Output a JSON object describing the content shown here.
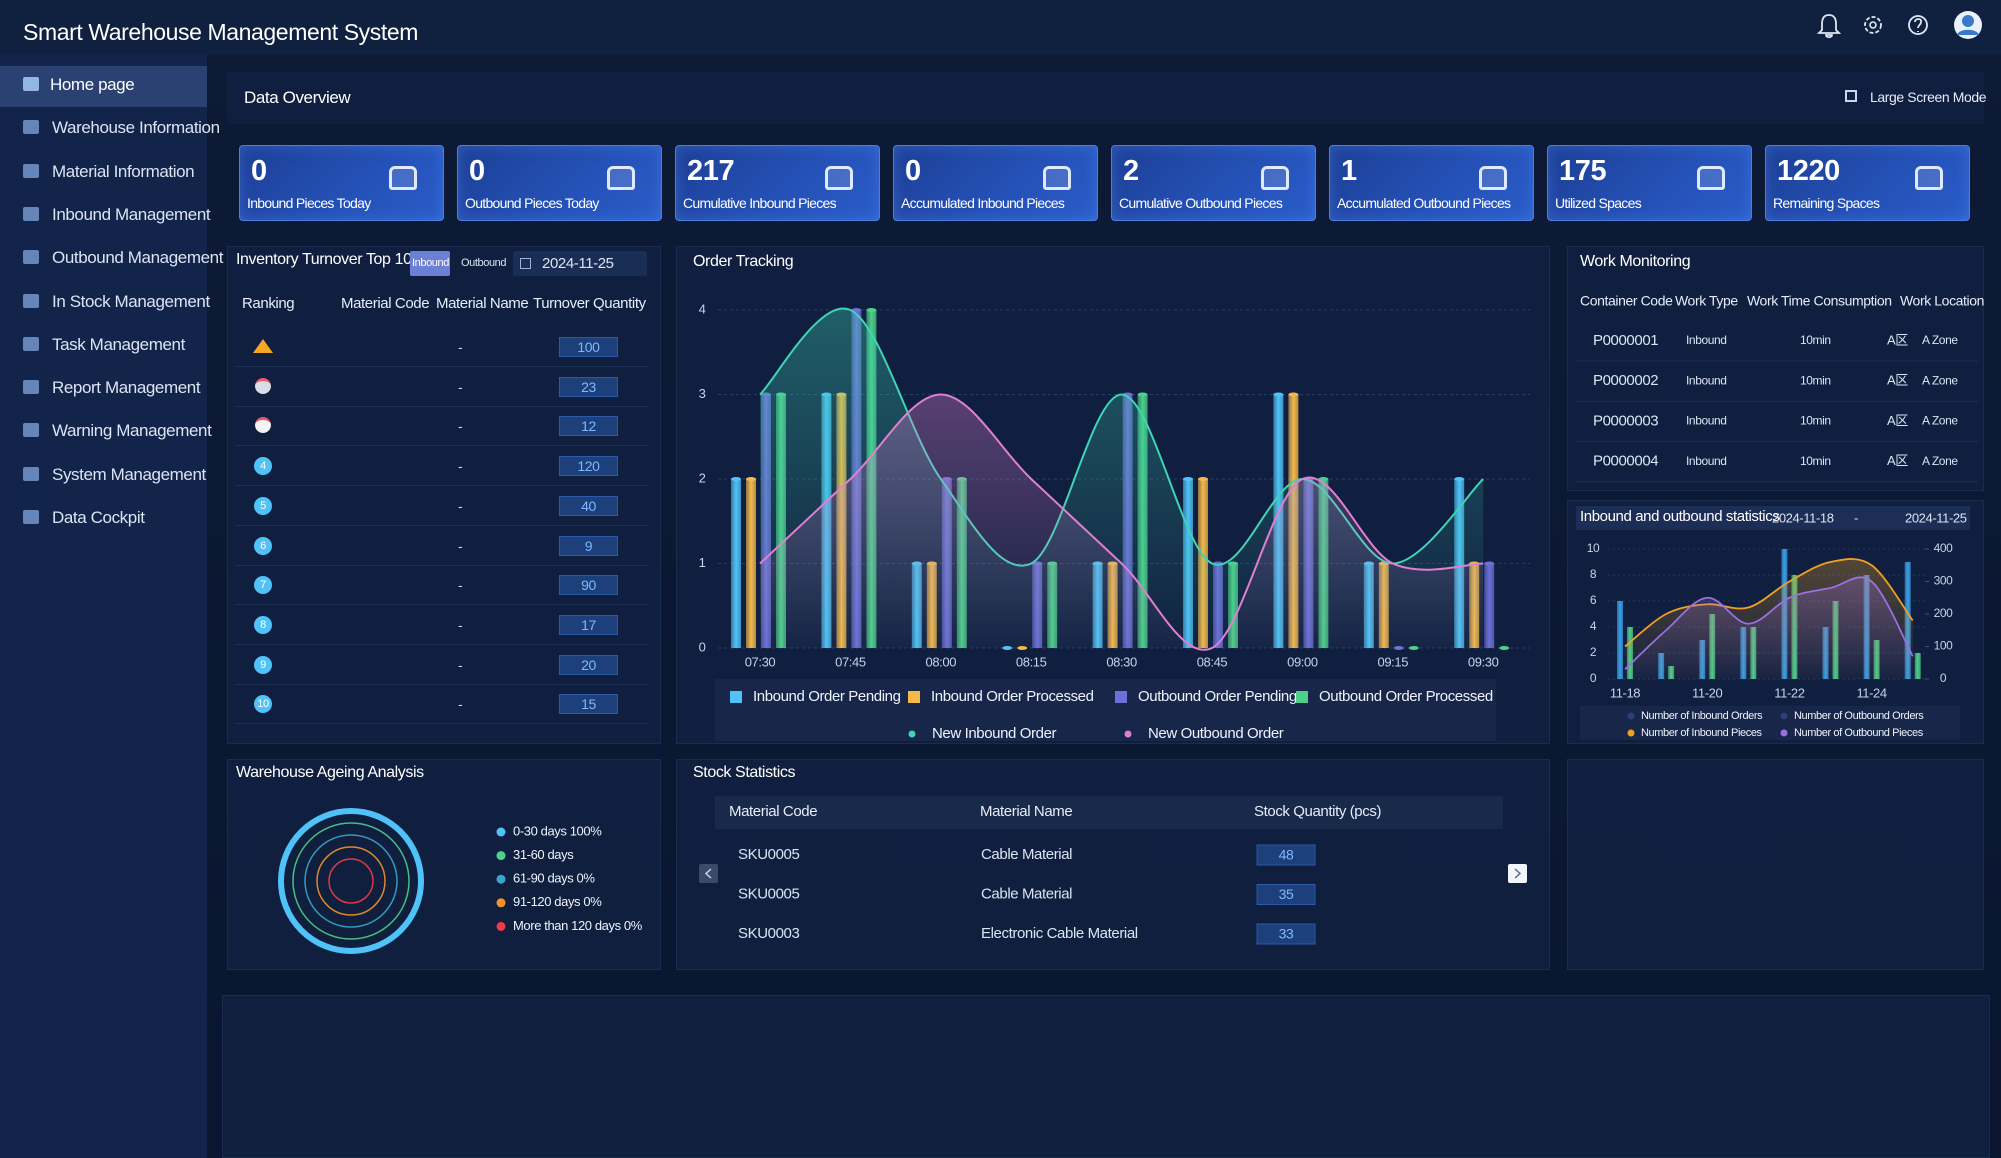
{
  "header": {
    "title": "Smart Warehouse Management System"
  },
  "sidebar": {
    "items": [
      "Home page",
      "Warehouse Information",
      "Material Information",
      "Inbound Management",
      "Outbound Management",
      "In Stock Management",
      "Task Management",
      "Report Management",
      "Warning Management",
      "System Management",
      "Data Cockpit"
    ]
  },
  "overview": {
    "title": "Data Overview",
    "large_screen_button": "Large Screen Mode",
    "kpis": [
      {
        "value": 0,
        "label": "Inbound Pieces Today"
      },
      {
        "value": 0,
        "label": "Outbound Pieces Today"
      },
      {
        "value": 217,
        "label": "Cumulative Inbound Pieces"
      },
      {
        "value": 0,
        "label": "Accumulated Inbound Pieces"
      },
      {
        "value": 2,
        "label": "Cumulative Outbound Pieces"
      },
      {
        "value": 1,
        "label": "Accumulated Outbound Pieces"
      },
      {
        "value": 175,
        "label": "Utilized Spaces"
      },
      {
        "value": 1220,
        "label": "Remaining Spaces"
      }
    ]
  },
  "inventory_turnover": {
    "title": "Inventory Turnover Top 10",
    "tabs": [
      "Inbound",
      "Outbound"
    ],
    "date": "2024-11-25",
    "columns": [
      "Ranking",
      "Material Code",
      "Material Name",
      "Turnover Quantity"
    ],
    "rows": [
      {
        "name": "-",
        "quantity": 100
      },
      {
        "name": "-",
        "quantity": 23
      },
      {
        "name": "-",
        "quantity": 12
      },
      {
        "rank": 4,
        "name": "-",
        "quantity": 120
      },
      {
        "rank": 5,
        "name": "-",
        "quantity": 40
      },
      {
        "rank": 6,
        "name": "-",
        "quantity": 9
      },
      {
        "rank": 7,
        "name": "-",
        "quantity": 90
      },
      {
        "rank": 8,
        "name": "-",
        "quantity": 17
      },
      {
        "rank": 9,
        "name": "-",
        "quantity": 20
      },
      {
        "rank": 10,
        "name": "-",
        "quantity": 15
      }
    ]
  },
  "order_tracking": {
    "type": "bar",
    "title": "Order Tracking",
    "categories": [
      "07:30",
      "07:45",
      "08:00",
      "08:15",
      "08:30",
      "08:45",
      "09:00",
      "09:15",
      "09:30"
    ],
    "ylim": [
      0,
      4
    ],
    "yticks": [
      0,
      1,
      2,
      3,
      4
    ],
    "grid": true,
    "series": [
      {
        "name": "Inbound Order Pending",
        "type": "bar",
        "color": "#4fc3f7",
        "values": [
          2,
          3,
          1,
          0,
          1,
          2,
          3,
          1,
          2
        ]
      },
      {
        "name": "Inbound Order Processed",
        "type": "bar",
        "color": "#f5b94a",
        "values": [
          2,
          3,
          1,
          0,
          1,
          2,
          3,
          1,
          1
        ]
      },
      {
        "name": "Outbound Order Pending",
        "type": "bar",
        "color": "#6c70d8",
        "values": [
          3,
          4,
          2,
          1,
          3,
          1,
          2,
          0,
          1
        ]
      },
      {
        "name": "Outbound Order Processed",
        "type": "bar",
        "color": "#4cd08a",
        "values": [
          3,
          4,
          2,
          1,
          3,
          1,
          2,
          0,
          0
        ]
      },
      {
        "name": "New Inbound Order",
        "type": "line",
        "color": "#3fd4b4",
        "values": [
          3,
          4,
          2,
          1,
          3,
          1,
          2,
          1,
          2
        ]
      },
      {
        "name": "New Outbound Order",
        "type": "line",
        "color": "#e07fd2",
        "values": [
          1,
          2,
          3,
          2,
          1,
          0,
          2,
          1,
          1
        ]
      }
    ]
  },
  "work_monitoring": {
    "title": "Work Monitoring",
    "columns": [
      "Container Code",
      "Work Type",
      "Work Time Consumption",
      "Work Location"
    ],
    "rows": [
      {
        "code": "P0000001",
        "type": "Inbound",
        "time": "10min",
        "area": "A区",
        "zone": "A Zone"
      },
      {
        "code": "P0000002",
        "type": "Inbound",
        "time": "10min",
        "area": "A区",
        "zone": "A Zone"
      },
      {
        "code": "P0000003",
        "type": "Inbound",
        "time": "10min",
        "area": "A区",
        "zone": "A Zone"
      },
      {
        "code": "P0000004",
        "type": "Inbound",
        "time": "10min",
        "area": "A区",
        "zone": "A Zone"
      }
    ]
  },
  "inout_statistics": {
    "type": "bar",
    "title": "Inbound and outbound statistics",
    "date_from": "2024-11-18",
    "date_separator": "-",
    "date_to": "2024-11-25",
    "categories": [
      "11-18",
      null,
      "11-20",
      null,
      "11-22",
      null,
      "11-24",
      null
    ],
    "ylim": [
      0,
      10
    ],
    "yticks": [
      0,
      2,
      4,
      6,
      8,
      10
    ],
    "y2lim": [
      0,
      400
    ],
    "y2ticks": [
      0,
      100,
      200,
      300,
      400
    ],
    "series": [
      {
        "name": "Number of Inbound Orders",
        "type": "bar",
        "color": "#3a9fe6",
        "values": [
          6,
          2,
          3,
          4,
          10,
          4,
          8,
          9
        ]
      },
      {
        "name": "Number of Outbound Orders",
        "type": "bar",
        "color": "#4cd08a",
        "values": [
          4,
          1,
          5,
          4,
          8,
          6,
          3,
          2
        ]
      },
      {
        "name": "Number of Inbound Pieces",
        "type": "line",
        "axis": "y2",
        "color": "#f0a020",
        "values": [
          100,
          200,
          230,
          220,
          300,
          360,
          350,
          180
        ]
      },
      {
        "name": "Number of Outbound Pieces",
        "type": "line",
        "axis": "y2",
        "color": "#9b6fe0",
        "values": [
          30,
          150,
          250,
          170,
          250,
          280,
          300,
          70
        ]
      }
    ]
  },
  "ageing": {
    "type": "ring",
    "title": "Warehouse Ageing Analysis",
    "categories": [
      "0-30 days 100%",
      "31-60 days",
      "61-90 days 0%",
      "91-120 days 0%",
      "More than 120 days 0%"
    ],
    "values": [
      100,
      0,
      0,
      0,
      0
    ],
    "colors": [
      "#4fc3f7",
      "#4cd08a",
      "#3aa6c9",
      "#f5922a",
      "#ef3b4a"
    ]
  },
  "stock_statistics": {
    "title": "Stock Statistics",
    "columns": [
      "Material Code",
      "Material Name",
      "Stock Quantity (pcs)"
    ],
    "rows": [
      [
        "SKU0005",
        "Cable Material",
        48
      ],
      [
        "SKU0005",
        "Cable Material",
        35
      ],
      [
        "SKU0003",
        "Electronic Cable Material",
        33
      ]
    ]
  }
}
